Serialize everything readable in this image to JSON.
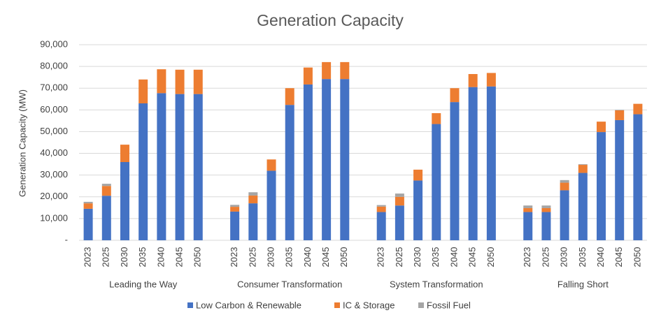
{
  "chart_data": {
    "type": "stacked-bar",
    "title": "Generation Capacity",
    "y_label": "Generation Capacity (MW)",
    "groups": [
      "Leading the Way",
      "Consumer Transformation",
      "System Transformation",
      "Falling Short"
    ],
    "categories": [
      "2023",
      "2025",
      "2030",
      "2035",
      "2040",
      "2045",
      "2050",
      null,
      "2023",
      "2025",
      "2030",
      "2035",
      "2040",
      "2045",
      "2050",
      null,
      "2023",
      "2025",
      "2030",
      "2035",
      "2040",
      "2045",
      "2050",
      null,
      "2023",
      "2025",
      "2030",
      "2035",
      "2040",
      "2045",
      "2050"
    ],
    "series": [
      {
        "name": "Low Carbon & Renewable",
        "color": "#4472c4",
        "values": [
          14500,
          20500,
          36000,
          63000,
          67700,
          67300,
          67300,
          null,
          13200,
          17000,
          32000,
          62300,
          71700,
          74200,
          74200,
          null,
          13000,
          16000,
          27500,
          53500,
          63600,
          70500,
          70800,
          null,
          13000,
          13000,
          23000,
          31000,
          49800,
          55300,
          58000
        ]
      },
      {
        "name": "IC & Storage",
        "color": "#ed7d31",
        "values": [
          2500,
          4500,
          8000,
          11000,
          11000,
          11200,
          11200,
          null,
          2200,
          3600,
          5200,
          7700,
          7800,
          7800,
          7800,
          null,
          2500,
          4000,
          5000,
          5000,
          6400,
          6000,
          6200,
          null,
          1800,
          1800,
          3500,
          3700,
          4800,
          4500,
          4800
        ]
      },
      {
        "name": "Fossil Fuel",
        "color": "#a5a5a5",
        "values": [
          700,
          1000,
          0,
          0,
          0,
          0,
          0,
          null,
          900,
          1500,
          0,
          0,
          0,
          0,
          0,
          null,
          700,
          1500,
          0,
          0,
          0,
          0,
          0,
          null,
          1200,
          1200,
          1200,
          300,
          0,
          200,
          0
        ]
      }
    ],
    "ylim": [
      0,
      90000
    ],
    "yticks": [
      {
        "value": 0,
        "label": "-"
      },
      {
        "value": 10000,
        "label": "10,000"
      },
      {
        "value": 20000,
        "label": "20,000"
      },
      {
        "value": 30000,
        "label": "30,000"
      },
      {
        "value": 40000,
        "label": "40,000"
      },
      {
        "value": 50000,
        "label": "50,000"
      },
      {
        "value": 60000,
        "label": "60,000"
      },
      {
        "value": 70000,
        "label": "70,000"
      },
      {
        "value": 80000,
        "label": "80,000"
      },
      {
        "value": 90000,
        "label": "90,000"
      }
    ],
    "grid": true,
    "legend": "bottom"
  }
}
